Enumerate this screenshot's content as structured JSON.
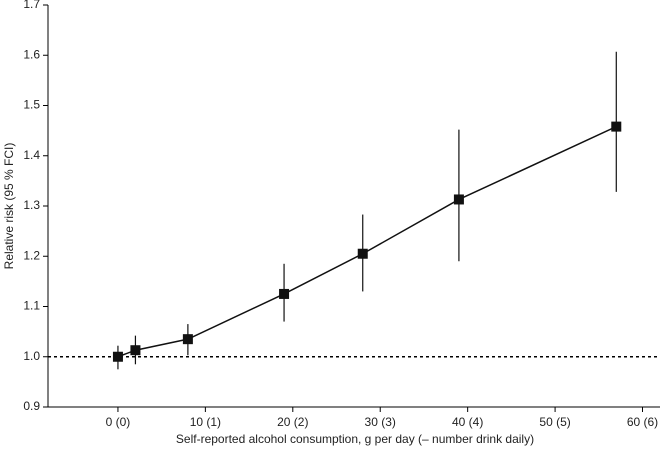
{
  "chart_data": {
    "type": "line",
    "xlabel": "Self-reported alcohol consumption, g per day (– number drink daily)",
    "ylabel": "Relative risk (95 % FCI)",
    "x": [
      0,
      2,
      8,
      19,
      28,
      39,
      57
    ],
    "series": [
      {
        "color": "#111111",
        "values": [
          1.0,
          1.013,
          1.035,
          1.125,
          1.205,
          1.313,
          1.458
        ],
        "lower": [
          0.975,
          0.985,
          1.003,
          1.07,
          1.13,
          1.19,
          1.328
        ],
        "upper": [
          1.022,
          1.042,
          1.065,
          1.185,
          1.283,
          1.452,
          1.607
        ]
      }
    ],
    "reference_line": 1,
    "xlim": [
      -8,
      62
    ],
    "xticks": [
      {
        "value": 0,
        "label": "0 (0)"
      },
      {
        "value": 10,
        "label": "10 (1)"
      },
      {
        "value": 20,
        "label": "20 (2)"
      },
      {
        "value": 30,
        "label": "30 (3)"
      },
      {
        "value": 40,
        "label": "40 (4)"
      },
      {
        "value": 50,
        "label": "50 (5)"
      },
      {
        "value": 60,
        "label": "60 (6)"
      }
    ],
    "ylim": [
      0.9,
      1.7
    ],
    "yticks": [
      0.9,
      {
        "value": 1,
        "label": "1.0"
      },
      1.1,
      1.2,
      1.3,
      1.4,
      1.5,
      1.6,
      1.7
    ],
    "grid": false
  }
}
